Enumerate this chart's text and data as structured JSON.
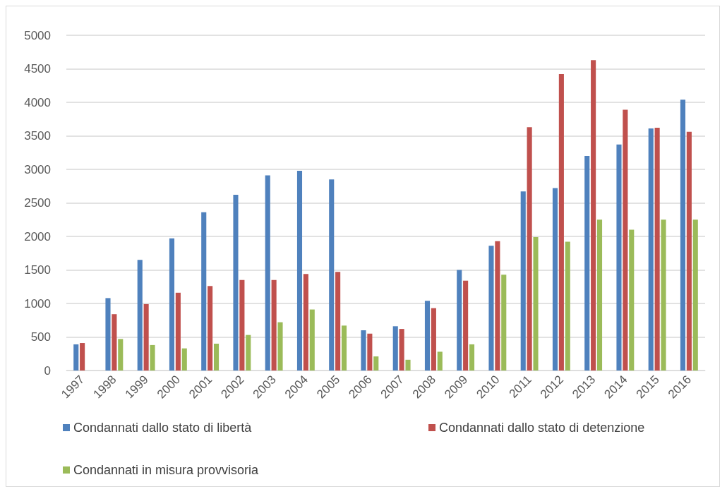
{
  "chart_data": {
    "type": "bar",
    "categories": [
      "1997",
      "1998",
      "1999",
      "2000",
      "2001",
      "2002",
      "2003",
      "2004",
      "2005",
      "2006",
      "2007",
      "2008",
      "2009",
      "2010",
      "2011",
      "2012",
      "2013",
      "2014",
      "2015",
      "2016"
    ],
    "series": [
      {
        "name": "Condannati dallo stato di libertà",
        "color": "#4f81bd",
        "values": [
          390,
          1080,
          1650,
          1970,
          2360,
          2620,
          2910,
          2980,
          2850,
          600,
          660,
          1040,
          1500,
          1860,
          2670,
          2720,
          3200,
          3370,
          3610,
          4040
        ]
      },
      {
        "name": "Condannati dallo stato di detenzione",
        "color": "#c0504d",
        "values": [
          410,
          840,
          990,
          1160,
          1260,
          1350,
          1350,
          1440,
          1470,
          550,
          620,
          930,
          1340,
          1930,
          3630,
          4420,
          4630,
          3890,
          3620,
          3560
        ]
      },
      {
        "name": "Condannati in misura provvisoria",
        "color": "#9bbb59",
        "values": [
          null,
          470,
          380,
          330,
          400,
          530,
          720,
          910,
          670,
          210,
          160,
          280,
          390,
          1430,
          1990,
          1920,
          2250,
          2100,
          2250,
          2250
        ]
      }
    ],
    "ylim": [
      0,
      5000
    ],
    "yticks": [
      0,
      500,
      1000,
      1500,
      2000,
      2500,
      3000,
      3500,
      4000,
      4500,
      5000
    ],
    "grid": "y",
    "legend": "bottom"
  }
}
